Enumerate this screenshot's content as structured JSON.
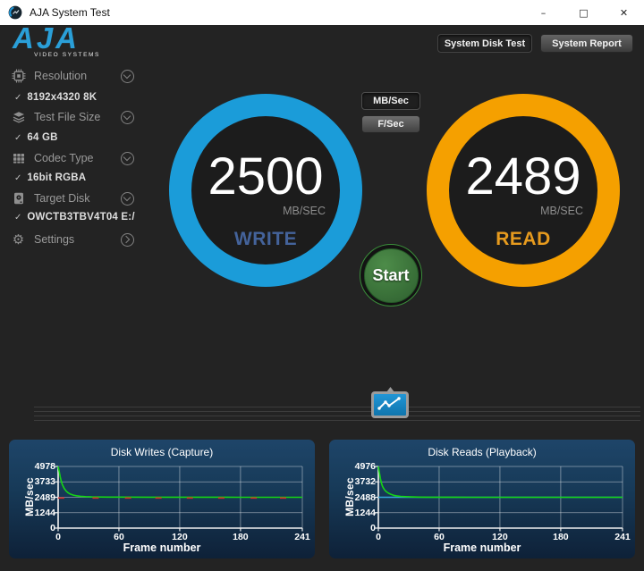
{
  "window": {
    "title": "AJA System Test",
    "controls": {
      "minimize": "–",
      "maximize": "□",
      "close": "✕"
    }
  },
  "brand": {
    "logo": "AJA",
    "tagline": "VIDEO SYSTEMS"
  },
  "toolbar": {
    "system_disk_test": "System Disk Test",
    "system_report": "System Report"
  },
  "sidebar": {
    "check_glyph": "✓",
    "gear_glyph": "⚙",
    "items": [
      {
        "label": "Resolution",
        "value": "8192x4320 8K"
      },
      {
        "label": "Test File Size",
        "value": "64 GB"
      },
      {
        "label": "Codec Type",
        "value": "16bit RGBA"
      },
      {
        "label": "Target Disk",
        "value": "OWCTB3TBV4T04 E:/"
      },
      {
        "label": "Settings"
      }
    ]
  },
  "unit_toggle": {
    "mbsec": "MB/Sec",
    "fsec": "F/Sec",
    "selected": "MB/Sec"
  },
  "gauges": {
    "write": {
      "value": "2500",
      "unit": "MB/SEC",
      "label": "WRITE",
      "ring_color": "#1b9cd9",
      "label_color": "#44639b"
    },
    "read": {
      "value": "2489",
      "unit": "MB/SEC",
      "label": "READ",
      "ring_color": "#f5a000",
      "label_color": "#e79b1e"
    }
  },
  "start_button": {
    "label": "Start"
  },
  "colors": {
    "background": "#232323",
    "titlebar": "#ffffff",
    "panel_top": "#1e4569",
    "panel_bottom": "#0e2138",
    "accent_blue": "#1b9cd9",
    "accent_orange": "#f5a000",
    "start_green": "#3f7a3c",
    "line_green": "#15d415",
    "line_cyan": "#35a8d8",
    "marks_red": "#d42a2a"
  },
  "chart_data": [
    {
      "type": "line",
      "title": "Disk Writes (Capture)",
      "xlabel": "Frame number",
      "ylabel": "MB/sec",
      "xlim": [
        0,
        241
      ],
      "ylim": [
        0,
        4978
      ],
      "xticks": [
        0,
        60,
        120,
        180,
        241
      ],
      "yticks": [
        0,
        1244,
        2489,
        3733,
        4978
      ],
      "grid": true,
      "series": [
        {
          "name": "write-rate",
          "color": "#15d415",
          "width": 1.6,
          "points": [
            [
              0,
              4978
            ],
            [
              1,
              4600
            ],
            [
              2,
              4150
            ],
            [
              3,
              3800
            ],
            [
              4,
              3550
            ],
            [
              5,
              3360
            ],
            [
              6,
              3200
            ],
            [
              8,
              2980
            ],
            [
              10,
              2840
            ],
            [
              12,
              2750
            ],
            [
              15,
              2660
            ],
            [
              18,
              2610
            ],
            [
              22,
              2570
            ],
            [
              27,
              2540
            ],
            [
              33,
              2520
            ],
            [
              40,
              2508
            ],
            [
              50,
              2502
            ],
            [
              60,
              2500
            ],
            [
              90,
              2496
            ],
            [
              120,
              2494
            ],
            [
              150,
              2493
            ],
            [
              180,
              2492
            ],
            [
              210,
              2491
            ],
            [
              241,
              2490
            ]
          ]
        }
      ],
      "marks": {
        "color": "#d42a2a",
        "y": 2430,
        "x": [
          3,
          37,
          69,
          99,
          130,
          161,
          193,
          222
        ]
      }
    },
    {
      "type": "line",
      "title": "Disk Reads (Playback)",
      "xlabel": "Frame number",
      "ylabel": "MB/sec",
      "xlim": [
        0,
        241
      ],
      "ylim": [
        0,
        4976
      ],
      "xticks": [
        0,
        60,
        120,
        180,
        241
      ],
      "yticks": [
        0,
        1244,
        2488,
        3732,
        4976
      ],
      "grid": true,
      "series": [
        {
          "name": "read-plateau",
          "color": "#35a8d8",
          "width": 1.4,
          "points": [
            [
              0,
              2488
            ],
            [
              241,
              2488
            ]
          ]
        },
        {
          "name": "read-rate",
          "color": "#15d415",
          "width": 1.6,
          "points": [
            [
              0,
              4976
            ],
            [
              1,
              4500
            ],
            [
              2,
              4000
            ],
            [
              3,
              3650
            ],
            [
              4,
              3400
            ],
            [
              5,
              3230
            ],
            [
              6,
              3100
            ],
            [
              8,
              2930
            ],
            [
              10,
              2820
            ],
            [
              12,
              2740
            ],
            [
              15,
              2650
            ],
            [
              18,
              2600
            ],
            [
              22,
              2560
            ],
            [
              27,
              2535
            ],
            [
              33,
              2515
            ],
            [
              40,
              2505
            ],
            [
              50,
              2498
            ],
            [
              60,
              2494
            ],
            [
              90,
              2491
            ],
            [
              120,
              2490
            ],
            [
              150,
              2489
            ],
            [
              180,
              2489
            ],
            [
              210,
              2488
            ],
            [
              241,
              2488
            ]
          ]
        }
      ]
    }
  ]
}
